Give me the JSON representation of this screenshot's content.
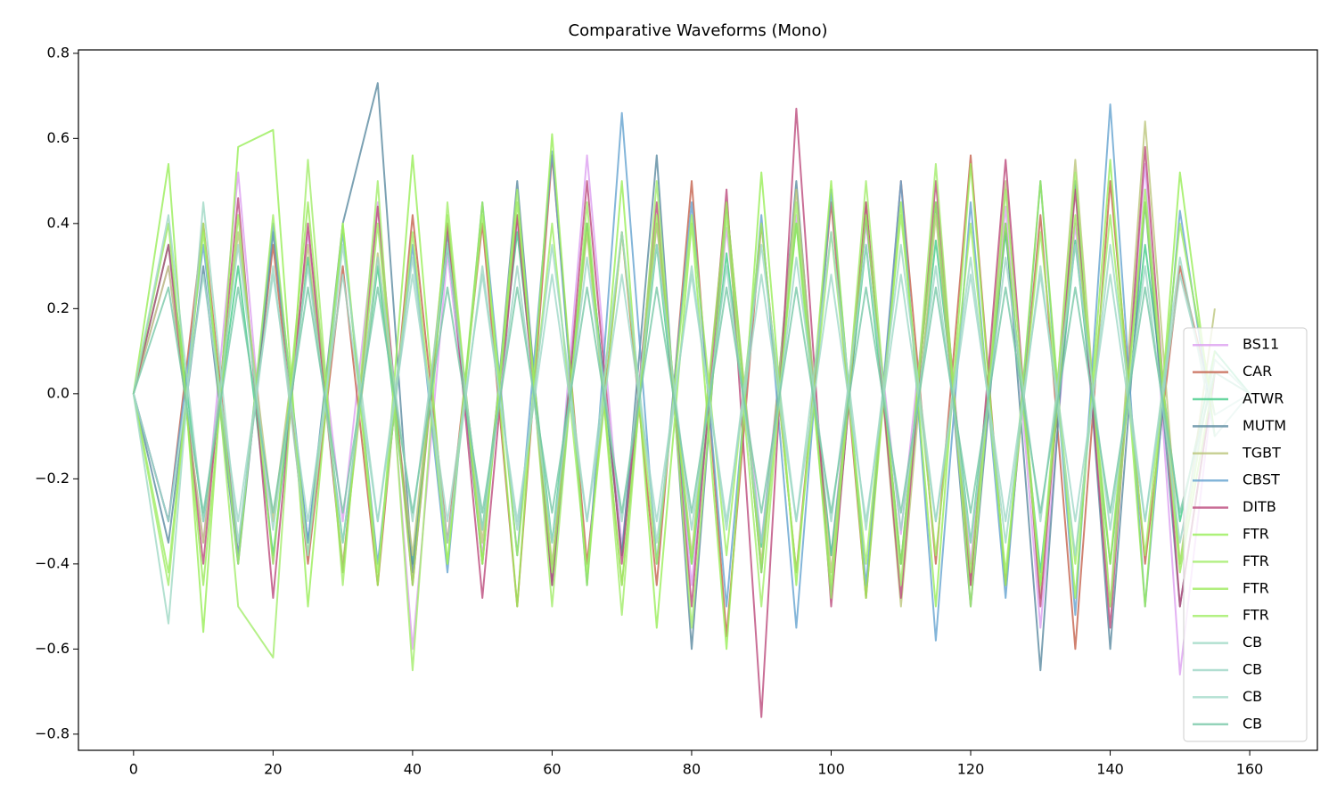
{
  "chart_data": {
    "type": "line",
    "title": "Comparative Waveforms (Mono)",
    "x": [
      0,
      5,
      10,
      15,
      20,
      25,
      30,
      35,
      40,
      45,
      50,
      55,
      60,
      65,
      70,
      75,
      80,
      85,
      90,
      95,
      100,
      105,
      110,
      115,
      120,
      125,
      130,
      135,
      140,
      145,
      150,
      155,
      160
    ],
    "xlim": [
      -7.9,
      169.7
    ],
    "xticks": [
      0,
      20,
      40,
      60,
      80,
      100,
      120,
      140,
      160
    ],
    "ylim": [
      -0.838,
      0.808
    ],
    "yticks": [
      {
        "value": -0.8,
        "label": "−0.8"
      },
      {
        "value": -0.6,
        "label": "−0.6"
      },
      {
        "value": -0.4,
        "label": "−0.4"
      },
      {
        "value": -0.2,
        "label": "−0.2"
      },
      {
        "value": 0,
        "label": "0.0"
      },
      0.2,
      0.4,
      0.6,
      0.8
    ],
    "grid": false,
    "legend": "lower right",
    "series": [
      {
        "name": "BS11",
        "color": "#dc9ff0",
        "values": [
          0,
          0.3,
          -0.35,
          0.52,
          -0.4,
          0.38,
          -0.3,
          0.45,
          -0.6,
          0.33,
          -0.38,
          0.4,
          -0.42,
          0.56,
          -0.36,
          0.4,
          -0.45,
          0.39,
          -0.35,
          0.42,
          -0.38,
          0.4,
          -0.33,
          0.45,
          -0.4,
          0.44,
          -0.55,
          0.4,
          -0.5,
          0.54,
          -0.66,
          0.05,
          null
        ]
      },
      {
        "name": "CAR",
        "color": "#c4624c",
        "values": [
          0,
          -0.3,
          0.4,
          -0.38,
          0.35,
          -0.4,
          0.3,
          -0.45,
          0.42,
          -0.35,
          0.4,
          -0.5,
          0.56,
          -0.4,
          0.38,
          -0.45,
          0.5,
          -0.57,
          0.4,
          -0.42,
          0.45,
          -0.48,
          0.5,
          -0.4,
          0.56,
          -0.45,
          0.42,
          -0.6,
          0.5,
          -0.4,
          0.3,
          -0.05,
          null
        ]
      },
      {
        "name": "ATWR",
        "color": "#44cc88",
        "values": [
          0,
          0.35,
          -0.3,
          0.3,
          -0.38,
          0.32,
          -0.35,
          0.3,
          -0.4,
          0.35,
          -0.32,
          0.38,
          -0.35,
          0.4,
          -0.38,
          0.35,
          -0.4,
          0.33,
          -0.36,
          0.4,
          -0.38,
          0.35,
          -0.4,
          0.36,
          -0.35,
          0.38,
          -0.42,
          0.36,
          -0.4,
          0.35,
          -0.3,
          0.1,
          0
        ]
      },
      {
        "name": "MUTM",
        "color": "#5a8aa0",
        "values": [
          0,
          -0.35,
          0.3,
          -0.4,
          0.38,
          -0.35,
          0.4,
          0.73,
          -0.42,
          0.38,
          -0.4,
          0.5,
          -0.45,
          0.4,
          -0.38,
          0.56,
          -0.6,
          0.45,
          -0.42,
          0.5,
          -0.48,
          0.42,
          -0.4,
          0.45,
          -0.5,
          0.4,
          -0.65,
          0.5,
          -0.6,
          0.45,
          -0.5,
          0.05,
          null
        ]
      },
      {
        "name": "TGBT",
        "color": "#bcc67c",
        "values": [
          0,
          0.3,
          -0.35,
          0.38,
          -0.3,
          0.35,
          -0.4,
          0.33,
          -0.38,
          0.4,
          -0.35,
          0.42,
          -0.4,
          0.38,
          -0.45,
          0.4,
          -0.38,
          0.45,
          -0.4,
          0.48,
          -0.42,
          0.45,
          -0.5,
          0.42,
          -0.45,
          0.5,
          -0.48,
          0.55,
          -0.5,
          0.64,
          -0.4,
          0.2,
          null
        ]
      },
      {
        "name": "CBST",
        "color": "#64a2d0",
        "values": [
          0,
          -0.3,
          0.35,
          -0.38,
          0.4,
          -0.35,
          0.38,
          -0.4,
          0.35,
          -0.42,
          0.45,
          -0.38,
          0.57,
          -0.45,
          0.66,
          -0.4,
          0.45,
          -0.5,
          0.42,
          -0.55,
          0.48,
          -0.45,
          0.5,
          -0.58,
          0.45,
          -0.48,
          0.5,
          -0.52,
          0.68,
          -0.5,
          0.43,
          -0.1,
          null
        ]
      },
      {
        "name": "DITB",
        "color": "#bc4a7c",
        "values": [
          0,
          0.35,
          -0.4,
          0.46,
          -0.48,
          0.4,
          -0.42,
          0.44,
          -0.45,
          0.4,
          -0.48,
          0.42,
          -0.45,
          0.5,
          -0.4,
          0.45,
          -0.5,
          0.48,
          -0.76,
          0.67,
          -0.5,
          0.45,
          -0.48,
          0.5,
          -0.45,
          0.55,
          -0.5,
          0.48,
          -0.55,
          0.58,
          -0.5,
          0.05,
          null
        ]
      },
      {
        "name": "FTR",
        "color": "#98ee58",
        "values": [
          0,
          0.54,
          -0.56,
          0.58,
          0.62,
          -0.5,
          0.4,
          -0.45,
          0.56,
          -0.4,
          0.45,
          -0.5,
          0.61,
          -0.45,
          0.5,
          -0.55,
          0.4,
          -0.6,
          0.52,
          -0.45,
          0.5,
          -0.48,
          0.45,
          -0.5,
          0.54,
          -0.45,
          0.5,
          -0.48,
          0.55,
          -0.5,
          0.52,
          -0.1,
          null
        ]
      },
      {
        "name": "FTR",
        "color": "#a2ec6a",
        "values": [
          0,
          -0.45,
          0.4,
          -0.5,
          -0.62,
          0.55,
          -0.45,
          0.5,
          -0.65,
          0.45,
          -0.4,
          0.48,
          -0.5,
          0.45,
          -0.52,
          0.5,
          -0.55,
          0.42,
          -0.5,
          0.45,
          -0.48,
          0.5,
          -0.45,
          0.54,
          -0.5,
          0.48,
          -0.45,
          0.52,
          -0.5,
          0.48,
          -0.4,
          0.1,
          null
        ]
      },
      {
        "name": "FTR",
        "color": "#9cea5c",
        "values": [
          0,
          0.4,
          -0.45,
          0.42,
          -0.4,
          0.45,
          -0.42,
          0.4,
          -0.45,
          0.42,
          -0.4,
          0.45,
          -0.42,
          0.4,
          -0.45,
          0.42,
          -0.4,
          0.45,
          -0.42,
          0.4,
          -0.45,
          0.42,
          -0.4,
          0.45,
          -0.42,
          0.4,
          -0.45,
          0.42,
          -0.4,
          0.45,
          -0.42,
          0.05,
          null
        ]
      },
      {
        "name": "FTR",
        "color": "#a0ee64",
        "values": [
          0,
          -0.42,
          0.38,
          -0.4,
          0.42,
          -0.38,
          0.4,
          -0.42,
          0.38,
          -0.4,
          0.42,
          -0.38,
          0.4,
          -0.42,
          0.38,
          -0.4,
          0.42,
          -0.38,
          0.4,
          -0.42,
          0.38,
          -0.4,
          0.42,
          -0.38,
          0.4,
          -0.42,
          0.38,
          -0.4,
          0.42,
          -0.38,
          0.4,
          -0.05,
          null
        ]
      },
      {
        "name": "CB",
        "color": "#9fd8c4",
        "values": [
          0,
          -0.54,
          0.45,
          -0.35,
          0.3,
          -0.38,
          0.35,
          -0.3,
          0.32,
          -0.35,
          0.3,
          -0.32,
          0.35,
          -0.3,
          0.38,
          -0.35,
          0.3,
          -0.32,
          0.35,
          -0.3,
          0.38,
          -0.32,
          0.35,
          -0.3,
          0.32,
          -0.35,
          0.3,
          -0.38,
          0.35,
          -0.3,
          0.32,
          -0.1,
          0
        ]
      },
      {
        "name": "CB",
        "color": "#9ed6c6",
        "values": [
          0,
          0.42,
          -0.3,
          0.35,
          -0.32,
          0.3,
          -0.35,
          0.32,
          -0.3,
          0.35,
          -0.32,
          0.3,
          -0.35,
          0.32,
          -0.3,
          0.35,
          -0.32,
          0.3,
          -0.35,
          0.32,
          -0.3,
          0.35,
          -0.32,
          0.3,
          -0.35,
          0.32,
          -0.3,
          0.35,
          -0.32,
          0.3,
          -0.35,
          0.08,
          0
        ]
      },
      {
        "name": "CB",
        "color": "#a0d8c8",
        "values": [
          0,
          -0.3,
          0.28,
          -0.3,
          0.28,
          -0.3,
          0.28,
          -0.3,
          0.28,
          -0.3,
          0.28,
          -0.3,
          0.28,
          -0.3,
          0.28,
          -0.3,
          0.28,
          -0.3,
          0.28,
          -0.3,
          0.28,
          -0.3,
          0.28,
          -0.3,
          0.28,
          -0.3,
          0.28,
          -0.3,
          0.28,
          -0.3,
          0.28,
          -0.05,
          0
        ]
      },
      {
        "name": "CB",
        "color": "#78c8a8",
        "values": [
          0,
          0.25,
          -0.28,
          0.25,
          -0.28,
          0.25,
          -0.28,
          0.25,
          -0.28,
          0.25,
          -0.28,
          0.25,
          -0.28,
          0.25,
          -0.28,
          0.25,
          -0.28,
          0.25,
          -0.28,
          0.25,
          -0.28,
          0.25,
          -0.28,
          0.25,
          -0.28,
          0.25,
          -0.28,
          0.25,
          -0.28,
          0.25,
          -0.28,
          0.05,
          0
        ]
      }
    ]
  }
}
